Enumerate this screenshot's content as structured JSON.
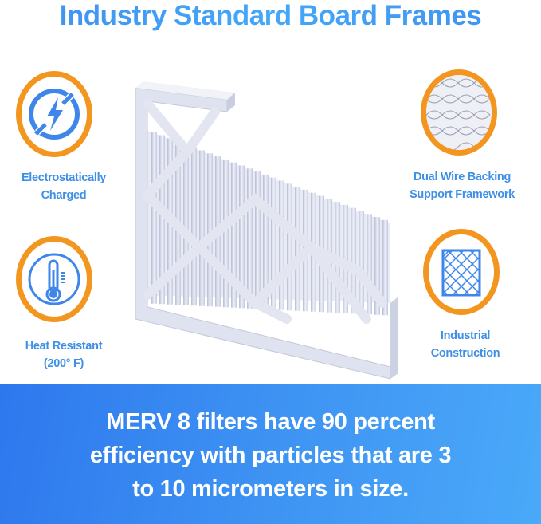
{
  "title": "Industry Standard Board Frames",
  "features": [
    {
      "icon": "electrostatic-bolt-icon",
      "line1": "Electrostatically",
      "line2": "Charged"
    },
    {
      "icon": "thermometer-icon",
      "line1": "Heat Resistant",
      "line2": "(200° F)"
    },
    {
      "icon": "wire-mesh-icon",
      "line1": "Dual Wire Backing",
      "line2": "Support Framework"
    },
    {
      "icon": "grid-frame-icon",
      "line1": "Industrial",
      "line2": "Construction"
    }
  ],
  "banner": {
    "line1": "MERV 8 filters have 90 percent",
    "line2": "efficiency with particles that are 3",
    "line3": "to 10 micrometers in size."
  },
  "colors": {
    "accent_orange": "#f3961f",
    "brand_blue": "#3e8fe6",
    "banner_blue": "#3f95f3"
  }
}
